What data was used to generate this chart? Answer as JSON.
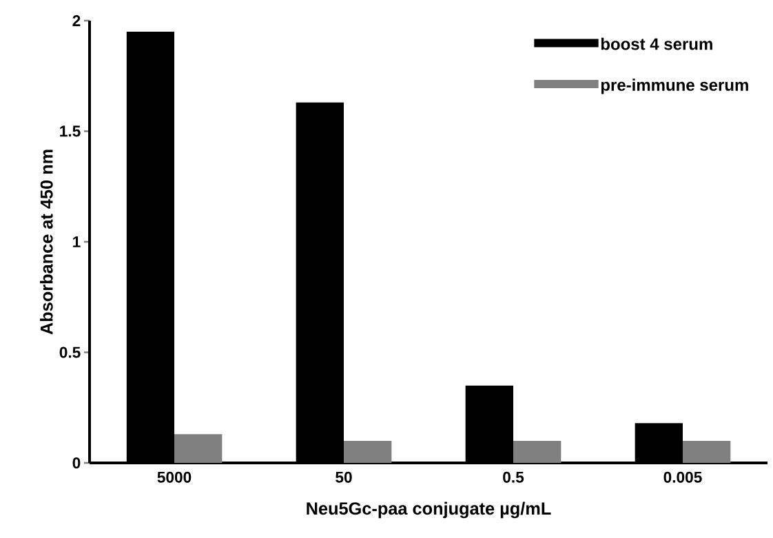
{
  "chart_data": {
    "type": "bar",
    "xlabel": "Neu5Gc-paa conjugate µg/mL",
    "ylabel": "Absorbance at 450 nm",
    "categories": [
      "5000",
      "50",
      "0.5",
      "0.005"
    ],
    "series": [
      {
        "name": "boost 4 serum",
        "color": "#000000",
        "values": [
          1.95,
          1.63,
          0.35,
          0.18
        ]
      },
      {
        "name": "pre-immune serum",
        "color": "#808080",
        "values": [
          0.13,
          0.1,
          0.1,
          0.1
        ]
      }
    ],
    "ylim": [
      0,
      2
    ],
    "yticks": [
      0,
      0.5,
      1,
      1.5,
      2
    ],
    "legend": "top right"
  }
}
